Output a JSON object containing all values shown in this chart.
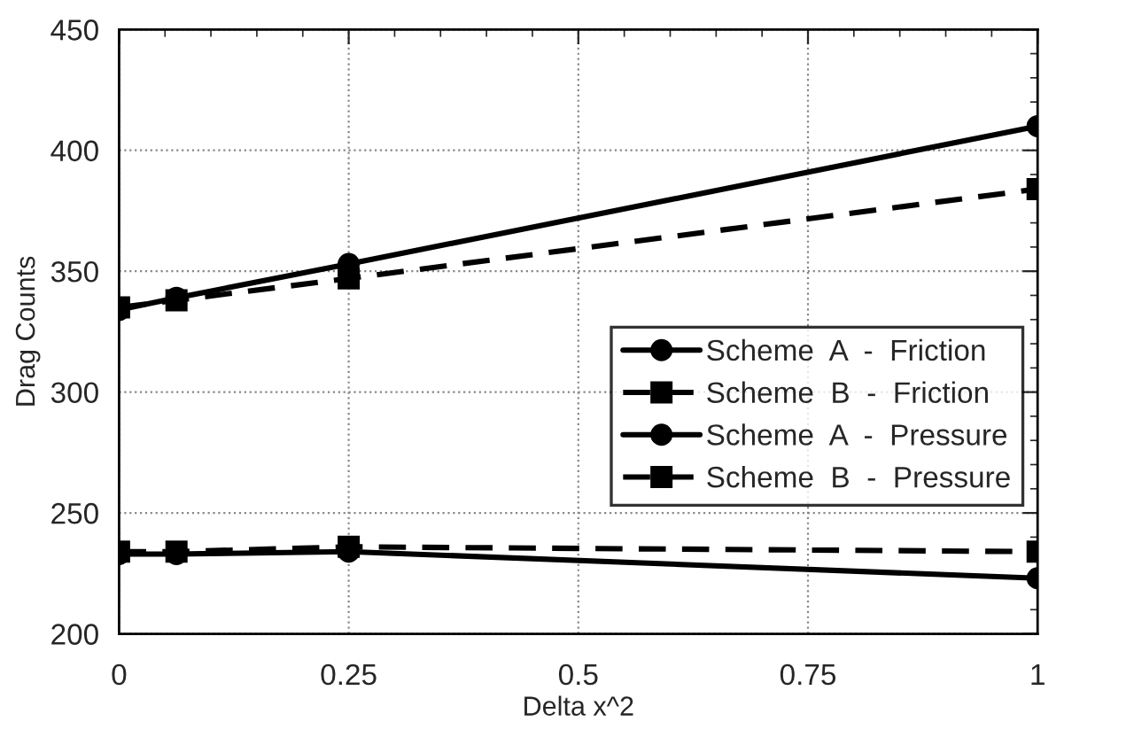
{
  "chart_data": {
    "type": "line",
    "xlabel": "Delta x^2",
    "ylabel": "Drag Counts",
    "x": [
      0,
      0.0625,
      0.25,
      1
    ],
    "series": [
      {
        "name": "Scheme  A  -  Friction",
        "color": "#000000",
        "values": [
          334,
          339,
          353,
          410
        ],
        "marker": "circle",
        "line_style": "solid"
      },
      {
        "name": "Scheme  B  -  Friction",
        "color": "#000000",
        "values": [
          335,
          338,
          347,
          384
        ],
        "marker": "square",
        "line_style": "dashed"
      },
      {
        "name": "Scheme  A  -  Pressure",
        "color": "#000000",
        "values": [
          233,
          233,
          234,
          223
        ],
        "marker": "circle",
        "line_style": "solid"
      },
      {
        "name": "Scheme  B  -  Pressure",
        "color": "#000000",
        "values": [
          234,
          234,
          236,
          234
        ],
        "marker": "square",
        "line_style": "dashed"
      }
    ],
    "xlim": [
      0,
      1
    ],
    "xticks": [
      0,
      0.25,
      0.5,
      0.75,
      1
    ],
    "ylim": [
      200,
      450
    ],
    "yticks": [
      200,
      250,
      300,
      350,
      400,
      450
    ],
    "grid": true,
    "legend": "right"
  }
}
